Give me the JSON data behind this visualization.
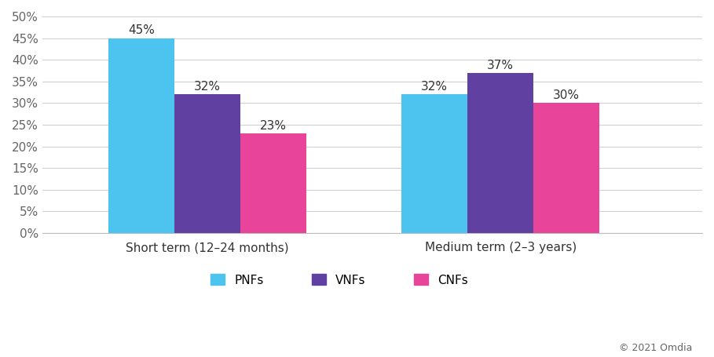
{
  "groups": [
    "Short term (12–24 months)",
    "Medium term (2–3 years)"
  ],
  "series": {
    "PNFs": [
      45,
      32
    ],
    "VNFs": [
      32,
      37
    ],
    "CNFs": [
      23,
      30
    ]
  },
  "ylim": [
    0,
    0.5
  ],
  "yticks": [
    0.0,
    0.05,
    0.1,
    0.15,
    0.2,
    0.25,
    0.3,
    0.35,
    0.4,
    0.45,
    0.5
  ],
  "ytick_labels": [
    "0%",
    "5%",
    "10%",
    "15%",
    "20%",
    "25%",
    "30%",
    "35%",
    "40%",
    "45%",
    "50%"
  ],
  "bar_width": 0.18,
  "group_centers": [
    0.35,
    1.15
  ],
  "annotation_fontsize": 11,
  "legend_fontsize": 11,
  "tick_fontsize": 11,
  "copyright": "© 2021 Omdia",
  "background_color": "#FFFFFF",
  "grid_color": "#D0D0D0",
  "pnf_color": "#4DC3F0",
  "vnf_color": "#6040A0",
  "cnf_color": "#E8449A",
  "xlim": [
    -0.1,
    1.7
  ],
  "label_color": "#333333",
  "ytick_color": "#666666"
}
